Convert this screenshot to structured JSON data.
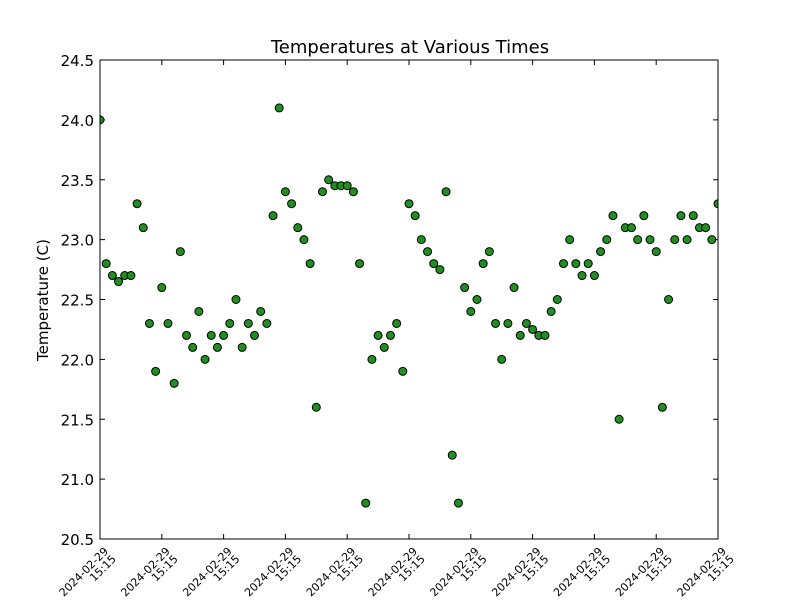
{
  "chart_data": {
    "type": "scatter",
    "title": "Temperatures at Various Times",
    "ylabel": "Temperature (C)",
    "series": [
      {
        "color": "#1f8f1f",
        "edgecolor": "#000000",
        "x": [
          0,
          0.1,
          0.2,
          0.3,
          0.4,
          0.5,
          0.6,
          0.7,
          0.8,
          0.9,
          1,
          1.1,
          1.2,
          1.3,
          1.4,
          1.5,
          1.6,
          1.7,
          1.8,
          1.9,
          2,
          2.1,
          2.2,
          2.3,
          2.4,
          2.5,
          2.6,
          2.7,
          2.8,
          2.9,
          3,
          3.1,
          3.2,
          3.3,
          3.4,
          3.5,
          3.6,
          3.7,
          3.8,
          3.9,
          4,
          4.1,
          4.2,
          4.3,
          4.4,
          4.5,
          4.6,
          4.7,
          4.8,
          4.9,
          5,
          5.1,
          5.2,
          5.3,
          5.4,
          5.5,
          5.6,
          5.7,
          5.8,
          5.9,
          6,
          6.1,
          6.2,
          6.3,
          6.4,
          6.5,
          6.6,
          6.7,
          6.8,
          6.9,
          7,
          7.1,
          7.2,
          7.3,
          7.4,
          7.5,
          7.6,
          7.7,
          7.8,
          7.9,
          8,
          8.1,
          8.2,
          8.3,
          8.4,
          8.5,
          8.6,
          8.7,
          8.8,
          8.9,
          9,
          9.1,
          9.2,
          9.3,
          9.4,
          9.5,
          9.6,
          9.7,
          9.8,
          9.9,
          10
        ],
        "values": [
          24.0,
          22.8,
          22.7,
          22.65,
          22.7,
          22.7,
          23.3,
          23.1,
          22.3,
          21.9,
          22.6,
          22.3,
          21.8,
          22.9,
          22.2,
          22.1,
          22.4,
          22.0,
          22.2,
          22.1,
          22.2,
          22.3,
          22.5,
          22.1,
          22.3,
          22.2,
          22.4,
          22.3,
          23.2,
          24.1,
          23.4,
          23.3,
          23.1,
          23.0,
          22.8,
          21.6,
          23.4,
          23.5,
          23.45,
          23.45,
          23.45,
          23.4,
          22.8,
          20.8,
          22.0,
          22.2,
          22.1,
          22.2,
          22.3,
          21.9,
          23.3,
          23.2,
          23.0,
          22.9,
          22.8,
          22.75,
          23.4,
          21.2,
          20.8,
          22.6,
          22.4,
          22.5,
          22.8,
          22.9,
          22.3,
          22.0,
          22.3,
          22.6,
          22.2,
          22.3,
          22.25,
          22.2,
          22.2,
          22.4,
          22.5,
          22.8,
          23.0,
          22.8,
          22.7,
          22.8,
          22.7,
          22.9,
          23.0,
          23.2,
          21.5,
          23.1,
          23.1,
          23.0,
          23.2,
          23.0,
          22.9,
          21.6,
          22.5,
          23.0,
          23.2,
          23.0,
          23.2,
          23.1,
          23.1,
          23.0,
          23.3
        ]
      }
    ],
    "xlim": [
      0,
      10
    ],
    "xticks": [
      {
        "value": 0,
        "label": [
          "2024-02-29",
          "15:15"
        ]
      },
      {
        "value": 1,
        "label": [
          "2024-02-29",
          "15:15"
        ]
      },
      {
        "value": 2,
        "label": [
          "2024-02-29",
          "15:15"
        ]
      },
      {
        "value": 3,
        "label": [
          "2024-02-29",
          "15:15"
        ]
      },
      {
        "value": 4,
        "label": [
          "2024-02-29",
          "15:15"
        ]
      },
      {
        "value": 5,
        "label": [
          "2024-02-29",
          "15:15"
        ]
      },
      {
        "value": 6,
        "label": [
          "2024-02-29",
          "15:15"
        ]
      },
      {
        "value": 7,
        "label": [
          "2024-02-29",
          "15:15"
        ]
      },
      {
        "value": 8,
        "label": [
          "2024-02-29",
          "15:15"
        ]
      },
      {
        "value": 9,
        "label": [
          "2024-02-29",
          "15:15"
        ]
      },
      {
        "value": 10,
        "label": [
          "2024-02-29",
          "15:15"
        ]
      }
    ],
    "ylim": [
      20.5,
      24.5
    ],
    "yticks": [
      20.5,
      {
        "value": 21,
        "label": "21.0"
      },
      21.5,
      {
        "value": 22,
        "label": "22.0"
      },
      22.5,
      {
        "value": 23,
        "label": "23.0"
      },
      23.5,
      {
        "value": 24,
        "label": "24.0"
      },
      24.5
    ],
    "grid": false
  }
}
